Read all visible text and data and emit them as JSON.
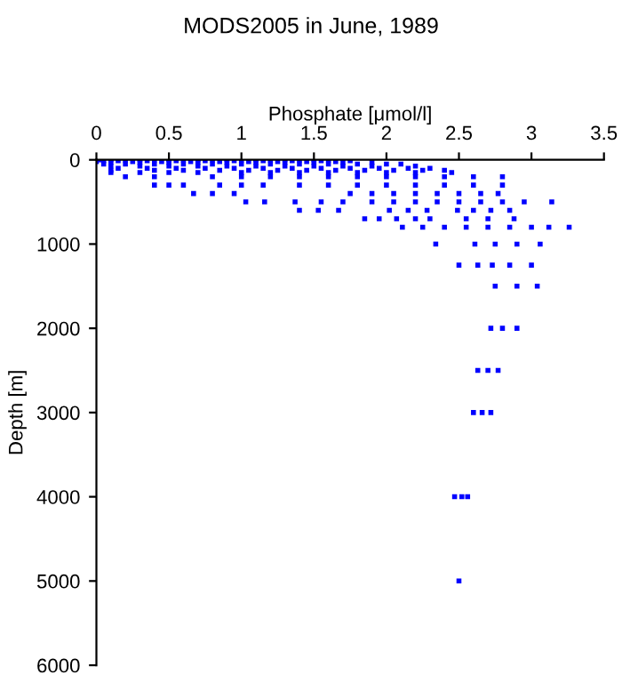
{
  "chart_data": {
    "type": "scatter",
    "title": "MODS2005 in June, 1989",
    "xlabel": "Phosphate [μmol/l]",
    "ylabel": "Depth [m]",
    "xlim": [
      0,
      3.5
    ],
    "xticks": [
      0,
      0.5,
      1,
      1.5,
      2,
      2.5,
      3,
      3.5
    ],
    "ylim": [
      6000,
      0
    ],
    "yticks": [
      0,
      1000,
      2000,
      3000,
      4000,
      5000,
      6000
    ],
    "grid": false,
    "marker": "square",
    "series": [
      {
        "color": "#0000ff",
        "x": [
          0.02,
          0.1,
          0.2,
          0.3,
          0.4,
          0.5,
          0.6,
          0.7,
          0.8,
          0.9,
          1.0,
          1.1,
          1.2,
          1.3,
          1.4,
          1.5,
          1.6,
          0.05,
          0.15,
          0.35,
          0.55,
          0.75,
          0.95,
          1.15,
          1.35,
          1.55,
          1.75,
          0.0,
          0.25,
          0.45,
          0.65,
          0.85,
          1.05,
          1.25,
          1.45,
          1.65,
          0.1,
          0.3,
          0.5,
          0.7,
          0.9,
          1.1,
          1.3,
          1.5,
          1.7,
          1.9,
          0.05,
          0.2,
          0.4,
          0.6,
          0.8,
          1.0,
          1.2,
          1.4,
          1.6,
          1.8,
          2.0,
          2.1,
          0.1,
          0.3,
          0.5,
          0.7,
          0.9,
          1.1,
          1.3,
          1.5,
          1.7,
          1.9,
          2.2,
          0.15,
          0.35,
          0.55,
          0.75,
          0.95,
          1.15,
          1.35,
          1.55,
          1.75,
          1.95,
          2.15,
          2.3,
          0.1,
          0.4,
          0.6,
          0.85,
          1.05,
          1.25,
          1.45,
          1.65,
          1.85,
          2.05,
          2.25,
          2.4,
          0.1,
          0.3,
          0.5,
          0.7,
          1.0,
          1.2,
          1.4,
          1.6,
          1.8,
          2.0,
          2.2,
          2.45,
          0.2,
          0.4,
          0.8,
          1.0,
          1.2,
          1.4,
          1.6,
          1.8,
          2.0,
          2.2,
          2.4,
          2.6,
          2.8,
          0.4,
          0.5,
          0.6,
          0.85,
          1.0,
          1.15,
          1.4,
          1.6,
          1.8,
          2.0,
          2.2,
          2.4,
          2.6,
          2.8,
          0.67,
          0.8,
          0.95,
          1.75,
          1.9,
          2.05,
          2.2,
          2.35,
          2.5,
          2.65,
          2.77,
          1.03,
          1.16,
          1.37,
          1.55,
          1.7,
          1.9,
          2.05,
          2.2,
          2.35,
          2.5,
          2.65,
          2.8,
          2.95,
          3.14,
          1.4,
          1.53,
          1.67,
          2.02,
          2.15,
          2.28,
          2.49,
          2.6,
          2.72,
          2.85,
          1.85,
          1.95,
          2.07,
          2.2,
          2.3,
          2.55,
          2.7,
          2.88,
          2.11,
          2.25,
          2.4,
          2.55,
          2.7,
          2.85,
          3.0,
          3.12,
          3.26,
          2.34,
          2.61,
          2.75,
          2.9,
          3.06,
          2.5,
          2.63,
          2.73,
          2.85,
          3.0,
          2.75,
          2.9,
          3.04,
          2.72,
          2.8,
          2.9,
          2.63,
          2.7,
          2.77,
          2.6,
          2.66,
          2.72,
          2.47,
          2.52,
          2.56,
          2.5
        ],
        "values": [
          0,
          0,
          0,
          0,
          0,
          0,
          0,
          0,
          0,
          0,
          0,
          0,
          0,
          0,
          0,
          0,
          0,
          10,
          10,
          10,
          10,
          10,
          10,
          10,
          10,
          10,
          10,
          20,
          20,
          20,
          20,
          20,
          20,
          20,
          20,
          20,
          30,
          30,
          30,
          30,
          30,
          30,
          30,
          30,
          30,
          30,
          50,
          50,
          50,
          50,
          50,
          50,
          50,
          50,
          50,
          50,
          50,
          50,
          75,
          75,
          75,
          75,
          75,
          75,
          75,
          75,
          75,
          75,
          75,
          100,
          100,
          100,
          100,
          100,
          100,
          100,
          100,
          100,
          100,
          100,
          100,
          125,
          125,
          125,
          125,
          125,
          125,
          125,
          125,
          125,
          125,
          125,
          125,
          150,
          150,
          150,
          150,
          150,
          150,
          150,
          150,
          150,
          150,
          150,
          150,
          200,
          200,
          200,
          200,
          200,
          200,
          200,
          200,
          200,
          200,
          200,
          200,
          200,
          300,
          300,
          300,
          300,
          300,
          300,
          300,
          300,
          300,
          300,
          300,
          300,
          300,
          300,
          400,
          400,
          400,
          400,
          400,
          400,
          400,
          400,
          400,
          400,
          400,
          500,
          500,
          500,
          500,
          500,
          500,
          500,
          500,
          500,
          500,
          500,
          500,
          500,
          500,
          600,
          600,
          600,
          600,
          600,
          600,
          600,
          600,
          600,
          600,
          700,
          700,
          700,
          700,
          700,
          700,
          700,
          700,
          800,
          800,
          800,
          800,
          800,
          800,
          800,
          800,
          800,
          1000,
          1000,
          1000,
          1000,
          1000,
          1250,
          1250,
          1250,
          1250,
          1250,
          1500,
          1500,
          1500,
          2000,
          2000,
          2000,
          2500,
          2500,
          2500,
          3000,
          3000,
          3000,
          4000,
          4000,
          4000,
          5000
        ]
      }
    ]
  }
}
